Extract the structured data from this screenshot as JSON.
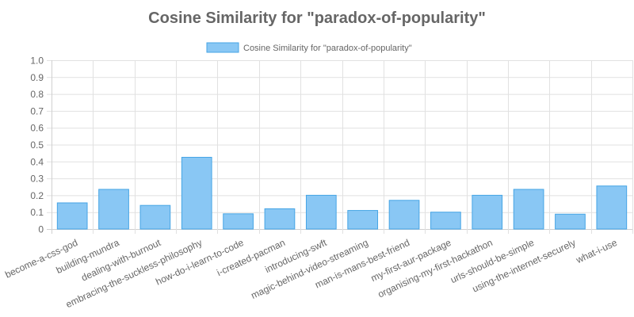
{
  "chart_data": {
    "type": "bar",
    "title": "Cosine Similarity for \"paradox-of-popularity\"",
    "xlabel": "",
    "ylabel": "",
    "ylim": [
      0,
      1.0
    ],
    "yticks": [
      "0",
      "0.1",
      "0.2",
      "0.3",
      "0.4",
      "0.5",
      "0.6",
      "0.7",
      "0.8",
      "0.9",
      "1.0"
    ],
    "legend_position": "top",
    "grid": true,
    "colors": {
      "bar_fill": "#89c7f4",
      "bar_stroke": "#46a5e5",
      "text": "#666666",
      "grid": "#e1e1e1"
    },
    "categories": [
      "become-a-css-god",
      "building-mundra",
      "dealing-with-burnout",
      "embracing-the-suckless-philosophy",
      "how-do-i-learn-to-code",
      "i-created-pacman",
      "introducing-swft",
      "magic-behind-video-streaming",
      "man-is-mans-best-friend",
      "my-first-aur-package",
      "organising-my-first-hackathon",
      "urls-should-be-simple",
      "using-the-internet-securely",
      "what-i-use"
    ],
    "series": [
      {
        "name": "Cosine Similarity for \"paradox-of-popularity\"",
        "values": [
          0.155,
          0.235,
          0.14,
          0.425,
          0.09,
          0.12,
          0.2,
          0.11,
          0.17,
          0.1,
          0.2,
          0.235,
          0.088,
          0.255
        ]
      }
    ]
  }
}
